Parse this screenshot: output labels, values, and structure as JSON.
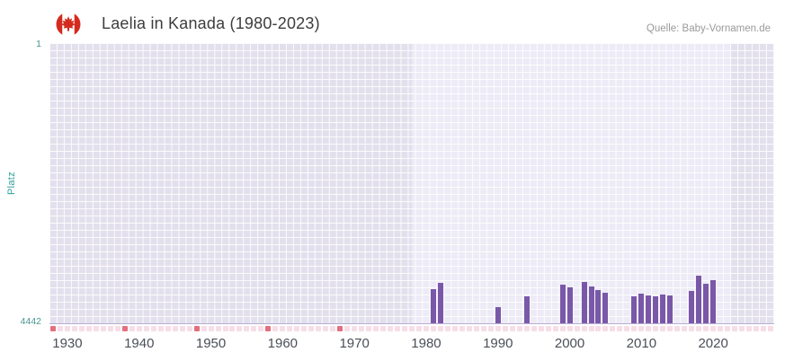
{
  "header": {
    "source": "Quelle: Baby-Vornamen.de"
  },
  "chart_data": {
    "type": "bar",
    "title": "Laelia in Kanada (1980-2023)",
    "subtitle": "",
    "xlabel": "",
    "ylabel": "Platz",
    "y_axis": {
      "top_tick": "1",
      "bottom_tick": "4442",
      "min": 1,
      "max": 4442,
      "inverted": true
    },
    "x_ticks": [
      "1930",
      "1940",
      "1950",
      "1960",
      "1970",
      "1980",
      "1990",
      "2000",
      "2010",
      "2020"
    ],
    "x_range": {
      "min": 1927.5,
      "max": 2028.5
    },
    "highlight_range": {
      "start": 1978,
      "end": 2022.5
    },
    "grid": true,
    "legend": "none",
    "bars": [
      {
        "year": 1981,
        "rank": 3900
      },
      {
        "year": 1982,
        "rank": 3800
      },
      {
        "year": 1990,
        "rank": 4190
      },
      {
        "year": 1994,
        "rank": 4020
      },
      {
        "year": 1999,
        "rank": 3830
      },
      {
        "year": 2000,
        "rank": 3870
      },
      {
        "year": 2002,
        "rank": 3790
      },
      {
        "year": 2003,
        "rank": 3860
      },
      {
        "year": 2004,
        "rank": 3920
      },
      {
        "year": 2005,
        "rank": 3960
      },
      {
        "year": 2009,
        "rank": 4020
      },
      {
        "year": 2010,
        "rank": 3970
      },
      {
        "year": 2011,
        "rank": 4000
      },
      {
        "year": 2012,
        "rank": 4010
      },
      {
        "year": 2013,
        "rank": 3990
      },
      {
        "year": 2014,
        "rank": 4000
      },
      {
        "year": 2017,
        "rank": 3930
      },
      {
        "year": 2018,
        "rank": 3690
      },
      {
        "year": 2019,
        "rank": 3820
      },
      {
        "year": 2020,
        "rank": 3760
      }
    ],
    "marker_strip": {
      "year_start": 1928,
      "year_end": 2028,
      "accent_years": [
        1928,
        1938,
        1948,
        1958,
        1968
      ]
    },
    "colors": {
      "bar": "#7a58a8",
      "plot_bg": "#e3e0ed",
      "band_bg": "#edebf6",
      "marker_light": "#f7dde6",
      "marker_accent": "#e2707e",
      "axis_line": "#b7aed6",
      "ylabel": "#2fa098",
      "ytick": "#4c9691",
      "xtick": "#4a4f57",
      "flag_red": "#d52b1e"
    }
  }
}
